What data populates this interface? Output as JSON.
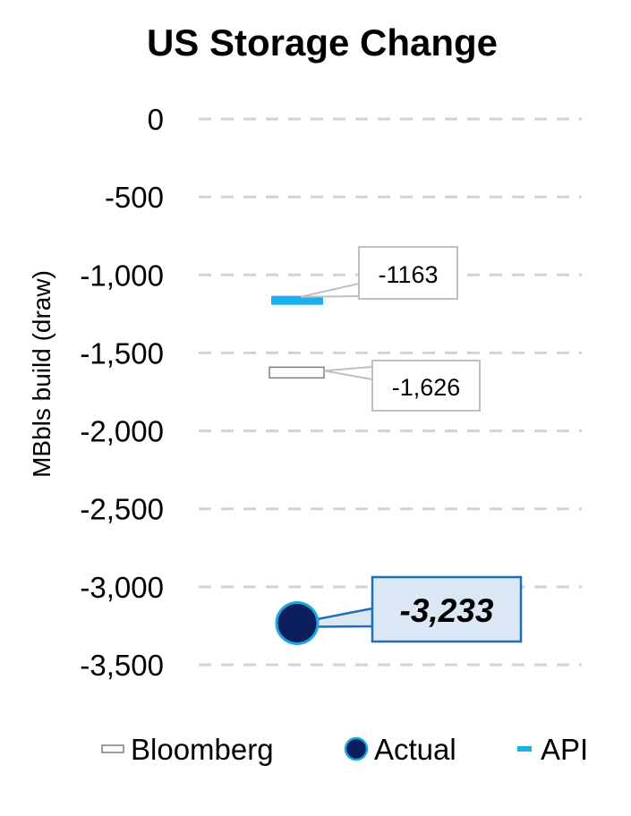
{
  "chart_data": {
    "type": "scatter",
    "title": "US Storage Change",
    "ylabel": "MBbls build (draw)",
    "ylim": [
      -3500,
      0
    ],
    "yticks": [
      0,
      -500,
      -1000,
      -1500,
      -2000,
      -2500,
      -3000,
      -3500
    ],
    "ytick_labels": [
      "0",
      "-500",
      "-1,000",
      "-1,500",
      "-2,000",
      "-2,500",
      "-3,000",
      "-3,500"
    ],
    "grid": true,
    "legend_position": "bottom",
    "series": [
      {
        "name": "Bloomberg",
        "value": -1626,
        "label": "-1,626",
        "marker": "hollow-bar",
        "color": "#ffffff",
        "stroke": "#7f7f7f"
      },
      {
        "name": "Actual",
        "value": -3233,
        "label": "-3,233",
        "marker": "circle",
        "color": "#0c1f5c",
        "stroke": "#1ea7e1"
      },
      {
        "name": "API",
        "value": -1163,
        "label": "-1163",
        "marker": "dash",
        "color": "#18b0ee"
      }
    ],
    "colors": {
      "grid": "#d3d3d3",
      "callout_border": "#bfbfbf",
      "actual_callout_border": "#1f6fb5",
      "actual_callout_fill": "#dbe7f5"
    }
  }
}
